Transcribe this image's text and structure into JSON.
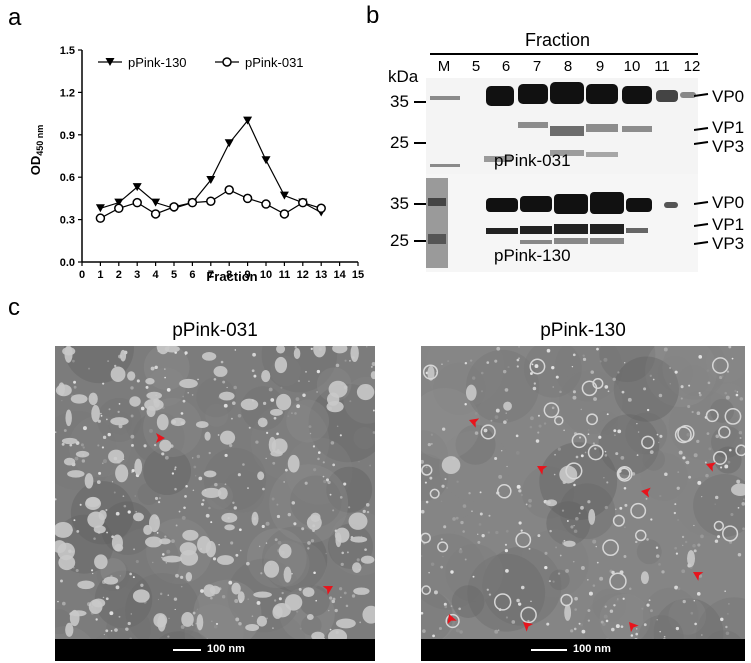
{
  "panels": {
    "a": "a",
    "b": "b",
    "c": "c"
  },
  "chart_data": {
    "type": "line",
    "x": [
      1,
      2,
      3,
      4,
      5,
      6,
      7,
      8,
      9,
      10,
      11,
      12,
      13
    ],
    "xticks": [
      0,
      1,
      2,
      3,
      4,
      5,
      6,
      7,
      8,
      9,
      10,
      11,
      12,
      13,
      14,
      15
    ],
    "yticks": [
      "0.0",
      "0.3",
      "0.6",
      "0.9",
      "1.2",
      "1.5"
    ],
    "xlim": [
      0,
      15
    ],
    "ylim": [
      0,
      1.5
    ],
    "xlabel": "Fraction",
    "ylabel_main": "OD",
    "ylabel_sub": "450 nm",
    "legend_position": "top",
    "series": [
      {
        "name": "pPink-130",
        "marker": "filled-triangle-down",
        "values": [
          0.38,
          0.42,
          0.53,
          0.42,
          0.38,
          0.42,
          0.58,
          0.84,
          1.0,
          0.72,
          0.47,
          0.42,
          0.35
        ]
      },
      {
        "name": "pPink-031",
        "marker": "open-circle",
        "values": [
          0.31,
          0.38,
          0.42,
          0.34,
          0.39,
          0.42,
          0.43,
          0.51,
          0.45,
          0.41,
          0.34,
          0.42,
          0.38
        ]
      }
    ]
  },
  "blot": {
    "header": "Fraction",
    "kda_label": "kDa",
    "lanes": [
      "M",
      "5",
      "6",
      "7",
      "8",
      "9",
      "10",
      "11",
      "12"
    ],
    "blot1": {
      "name": "pPink-031",
      "markers": [
        "35",
        "25"
      ],
      "bands": [
        "VP0",
        "VP1",
        "VP3"
      ]
    },
    "blot2": {
      "name": "pPink-130",
      "markers": [
        "35",
        "25"
      ],
      "bands": [
        "VP0",
        "VP1",
        "VP3"
      ]
    }
  },
  "em": {
    "left_title": "pPink-031",
    "right_title": "pPink-130",
    "scale_label": "100 nm",
    "arrow_color": "#e8141c"
  }
}
